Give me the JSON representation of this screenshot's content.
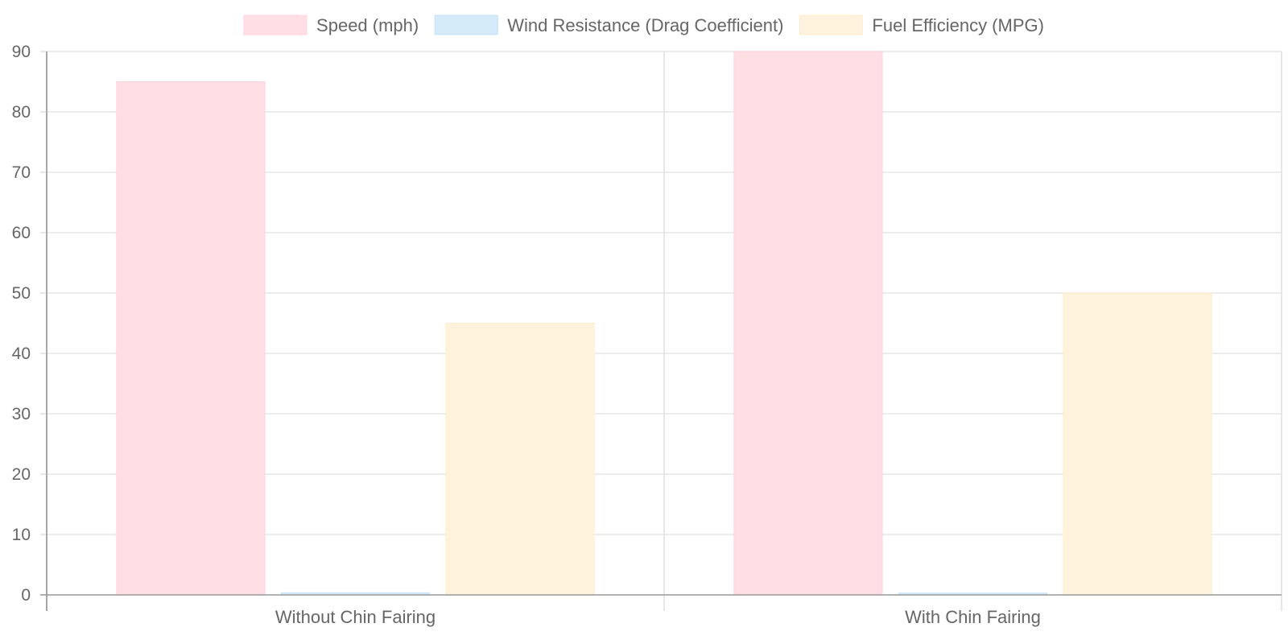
{
  "chart_data": {
    "type": "bar",
    "title": "",
    "xlabel": "",
    "ylabel": "",
    "categories": [
      "Without Chin Fairing",
      "With Chin Fairing"
    ],
    "series": [
      {
        "name": "Speed (mph)",
        "values": [
          85,
          90
        ],
        "color": "#ffdfe5",
        "border_color": "#ffd2dc"
      },
      {
        "name": "Wind Resistance (Drag Coefficient)",
        "values": [
          0.35,
          0.3
        ],
        "color": "#d6ebfa",
        "border_color": "#c5e2f7"
      },
      {
        "name": "Fuel Efficiency (MPG)",
        "values": [
          45,
          50
        ],
        "color": "#fff3dd",
        "border_color": "#ffeccc"
      }
    ],
    "ylim": [
      0,
      90
    ],
    "yticks": [
      0,
      10,
      20,
      30,
      40,
      50,
      60,
      70,
      80,
      90
    ],
    "grid": true,
    "legend_position": "top"
  }
}
